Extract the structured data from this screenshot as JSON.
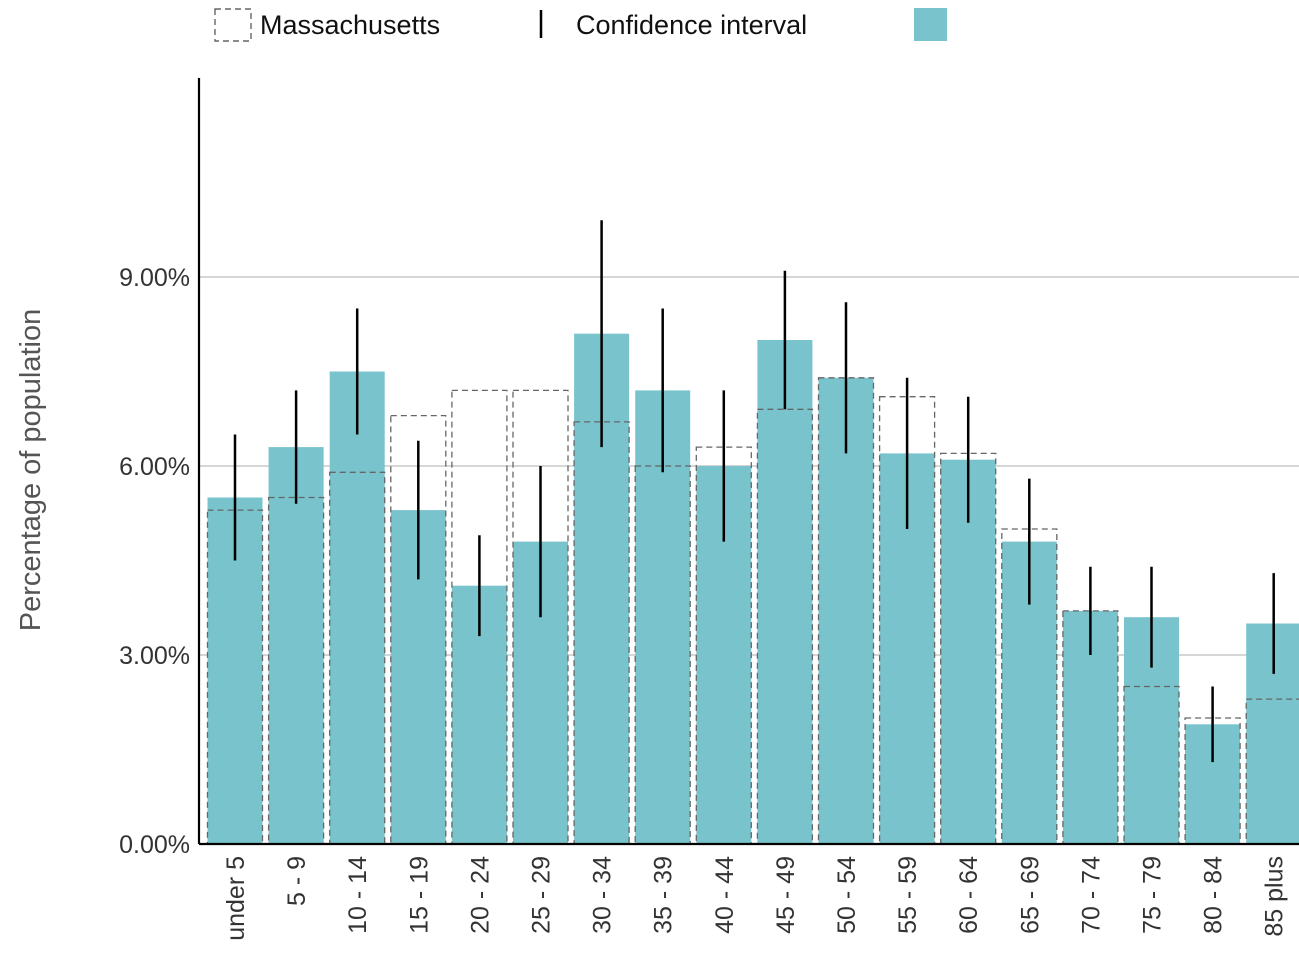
{
  "legend": {
    "ma_label": "Massachusetts",
    "ci_label": "Confidence interval",
    "series_label": ""
  },
  "colors": {
    "bar": "#78C3CC",
    "ma_outline": "#666666",
    "ci": "#000000",
    "grid": "#BDBDBD",
    "axis": "#000000"
  },
  "chart_data": {
    "type": "bar",
    "ylabel": "Percentage of population",
    "xlabel": "",
    "ylim": [
      0,
      0.12
    ],
    "yticks": [
      0,
      0.03,
      0.06,
      0.09
    ],
    "ytick_labels": [
      "0.00%",
      "3.00%",
      "6.00%",
      "9.00%"
    ],
    "grid": true,
    "legend_position": "top",
    "categories": [
      "under 5",
      "5 - 9",
      "10 - 14",
      "15 - 19",
      "20 - 24",
      "25 - 29",
      "30 - 34",
      "35 - 39",
      "40 - 44",
      "45 - 49",
      "50 - 54",
      "55 - 59",
      "60 - 64",
      "65 - 69",
      "70 - 74",
      "75 - 79",
      "80 - 84",
      "85 plus"
    ],
    "series": [
      {
        "values": [
          0.055,
          0.063,
          0.075,
          0.053,
          0.041,
          0.048,
          0.081,
          0.072,
          0.06,
          0.08,
          0.074,
          0.062,
          0.061,
          0.048,
          0.037,
          0.036,
          0.019,
          0.035
        ],
        "ci_low": [
          0.045,
          0.054,
          0.065,
          0.042,
          0.033,
          0.036,
          0.063,
          0.059,
          0.048,
          0.069,
          0.062,
          0.05,
          0.051,
          0.038,
          0.03,
          0.028,
          0.013,
          0.027
        ],
        "ci_high": [
          0.065,
          0.072,
          0.085,
          0.064,
          0.049,
          0.06,
          0.099,
          0.085,
          0.072,
          0.091,
          0.086,
          0.074,
          0.071,
          0.058,
          0.044,
          0.044,
          0.025,
          0.043
        ]
      },
      {
        "name": "Massachusetts",
        "values": [
          0.053,
          0.055,
          0.059,
          0.068,
          0.072,
          0.072,
          0.067,
          0.06,
          0.063,
          0.069,
          0.074,
          0.071,
          0.062,
          0.05,
          0.037,
          0.025,
          0.02,
          0.023
        ]
      }
    ]
  }
}
